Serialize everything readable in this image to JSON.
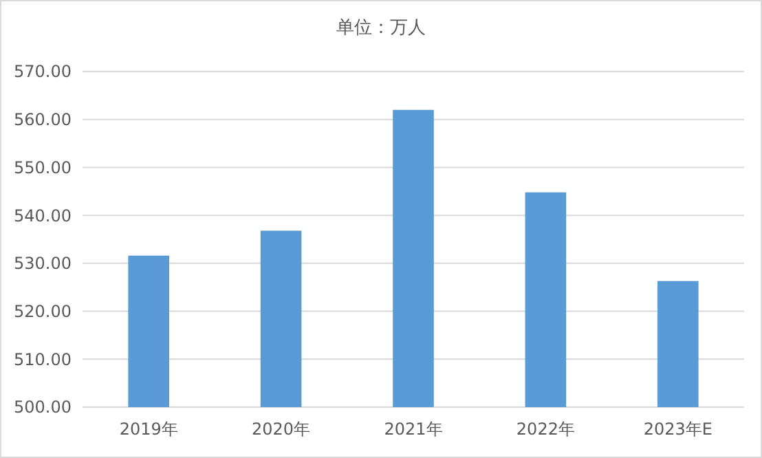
{
  "chart_data": {
    "type": "bar",
    "title": "单位：万人",
    "categories": [
      "2019年",
      "2020年",
      "2021年",
      "2022年",
      "2023年E"
    ],
    "values": [
      531.6,
      536.8,
      562.0,
      544.8,
      526.3
    ],
    "color": "#5b9bd5",
    "ylim": [
      500,
      570
    ],
    "yticks": [
      {
        "value": 500,
        "label": "500.00"
      },
      {
        "value": 510,
        "label": "510.00"
      },
      {
        "value": 520,
        "label": "520.00"
      },
      {
        "value": 530,
        "label": "530.00"
      },
      {
        "value": 540,
        "label": "540.00"
      },
      {
        "value": 550,
        "label": "550.00"
      },
      {
        "value": 560,
        "label": "560.00"
      },
      {
        "value": 570,
        "label": "570.00"
      }
    ],
    "grid": "y"
  }
}
